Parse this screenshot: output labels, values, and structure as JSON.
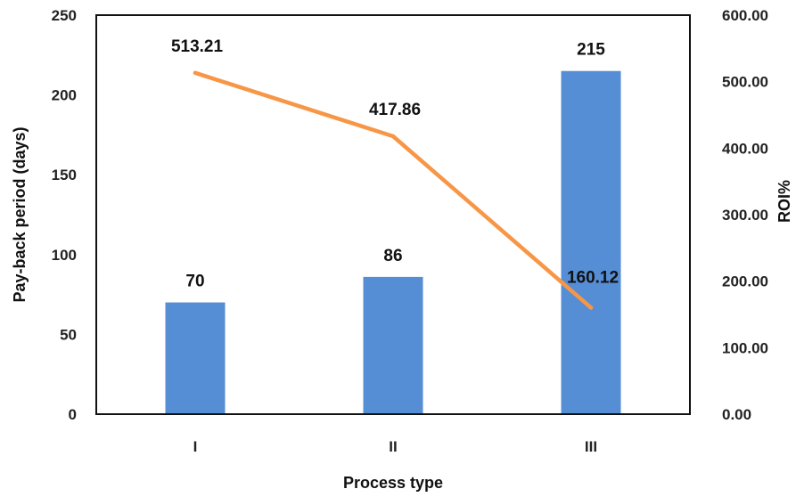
{
  "chart_data": {
    "type": "bar+line",
    "title": "",
    "xlabel": "Process type",
    "ylabel_left": "Pay-back period (days)",
    "ylabel_right": "ROI%",
    "categories": [
      "I",
      "II",
      "III"
    ],
    "series": [
      {
        "type": "bar",
        "axis": "left",
        "color": "#558ED5",
        "values": [
          70,
          86,
          215
        ],
        "labels": [
          "70",
          "86",
          "215"
        ]
      },
      {
        "type": "line",
        "axis": "right",
        "color": "#F79646",
        "values": [
          513.21,
          417.86,
          160.12
        ],
        "labels": [
          "513.21",
          "417.86",
          "160.12"
        ]
      }
    ],
    "ylim_left": [
      0,
      250
    ],
    "ylim_right": [
      0,
      600
    ],
    "left_ticks": [
      "0",
      "50",
      "100",
      "150",
      "200",
      "250"
    ],
    "right_ticks": [
      "0.00",
      "100.00",
      "200.00",
      "300.00",
      "400.00",
      "500.00",
      "600.00"
    ],
    "grid": false,
    "legend": "none"
  }
}
